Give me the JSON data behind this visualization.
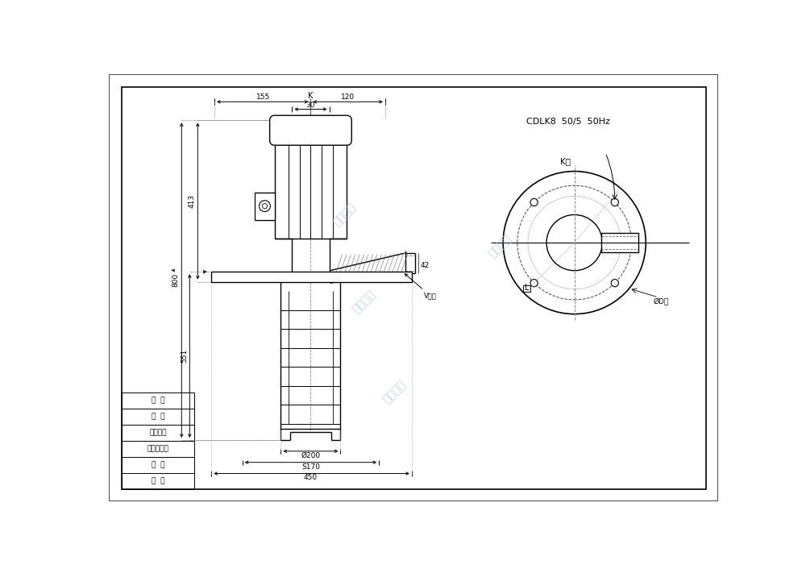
{
  "watermark": "南方泵业",
  "bg_color": "#ffffff",
  "title_text": "CDLK8  50/5  50Hz",
  "label_k": "K",
  "label_k_hole": "K孔",
  "dim_155": "155",
  "dim_120": "120",
  "dim_30": "30",
  "dim_413": "413",
  "dim_800": "800",
  "dim_551": "551",
  "dim_200": "Ø200",
  "dim_s170": "S170",
  "dim_450": "450",
  "dim_42": "42",
  "dim_vnbd": "V内径",
  "table_rows": [
    "描  图",
    "描  技",
    "旧图档编号",
    "图档编号",
    "签  字",
    "日  期"
  ],
  "circ_label_l": "L",
  "circ_label_d": "ØD天"
}
